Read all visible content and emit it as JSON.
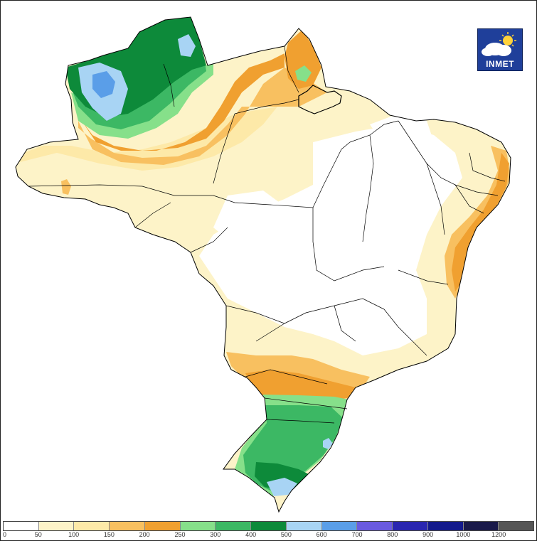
{
  "logo": {
    "text": "INMET",
    "icon": "sun-cloud-icon"
  },
  "legend": {
    "ticks": [
      "0",
      "50",
      "100",
      "150",
      "200",
      "250",
      "300",
      "400",
      "500",
      "600",
      "700",
      "800",
      "900",
      "1000",
      "1200"
    ],
    "colors": [
      "#ffffff",
      "#fdf3c8",
      "#fde9a8",
      "#f8c060",
      "#f0a030",
      "#86e08a",
      "#3cb864",
      "#0d8a3a",
      "#a8d4f4",
      "#5a9ee8",
      "#6a5ae0",
      "#2a26b0",
      "#141a8c",
      "#1a1a4a",
      "#555555"
    ]
  },
  "map": {
    "colors": {
      "background": "#ffffff",
      "land_base": "#fdf3c8",
      "light_yellow": "#fde9a8",
      "orange_light": "#f8c060",
      "orange": "#f0a030",
      "green_light": "#86e08a",
      "green": "#3cb864",
      "green_dark": "#0d8a3a",
      "blue_light": "#a8d4f4",
      "blue": "#5a9ee8",
      "border": "#000000"
    }
  }
}
